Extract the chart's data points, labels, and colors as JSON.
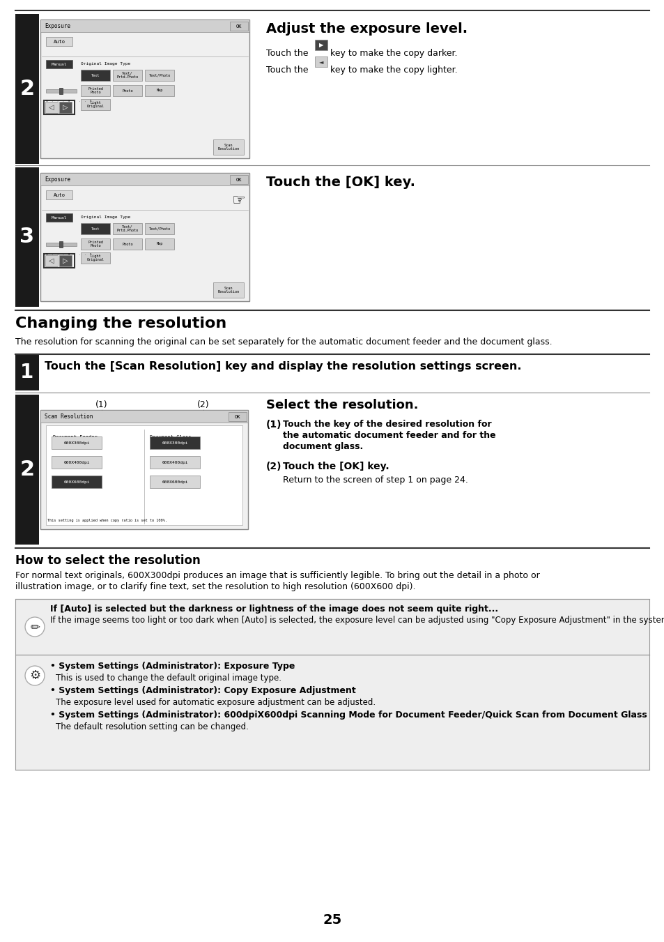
{
  "page_bg": "#ffffff",
  "page_number": "25",
  "section2_title": "Adjust the exposure level.",
  "section3_title": "Touch the [OK] key.",
  "changing_title": "Changing the resolution",
  "changing_desc": "The resolution for scanning the original can be set separately for the automatic document feeder and the document glass.",
  "step1_text": "Touch the [Scan Resolution] key and display the resolution settings screen.",
  "step2_right_title": "Select the resolution.",
  "step2_item1_label": "(1)",
  "step2_item1_text": "Touch the key of the desired resolution for\nthe automatic document feeder and for the\ndocument glass.",
  "step2_item2_label": "(2)",
  "step2_item2_text": "Touch the [OK] key.",
  "step2_item2_sub": "Return to the screen of step 1 on page 24.",
  "how_title": "How to select the resolution",
  "how_desc1": "For normal text originals, 600X300dpi produces an image that is sufficiently legible. To bring out the detail in a photo or",
  "how_desc2": "illustration image, or to clarify fine text, set the resolution to high resolution (600X600 dpi).",
  "note1_bold": "If [Auto] is selected but the darkness or lightness of the image does not seem quite right...",
  "note1_text": "If the image seems too light or too dark when [Auto] is selected, the exposure level can be adjusted using \"Copy Exposure Adjustment\" in the system settings (administrator).",
  "note2_items": [
    {
      "bold": "System Settings (Administrator): Exposure Type",
      "text": "This is used to change the default original image type."
    },
    {
      "bold": "System Settings (Administrator): Copy Exposure Adjustment",
      "text": "The exposure level used for automatic exposure adjustment can be adjusted."
    },
    {
      "bold": "System Settings (Administrator): 600dpiX600dpi Scanning Mode for Document Feeder/Quick Scan from Document Glass",
      "text": "The default resolution setting can be changed."
    }
  ],
  "step_bg": "#1a1a1a",
  "step_text": "#ffffff",
  "note_bg": "#eeeeee",
  "note_border": "#999999"
}
